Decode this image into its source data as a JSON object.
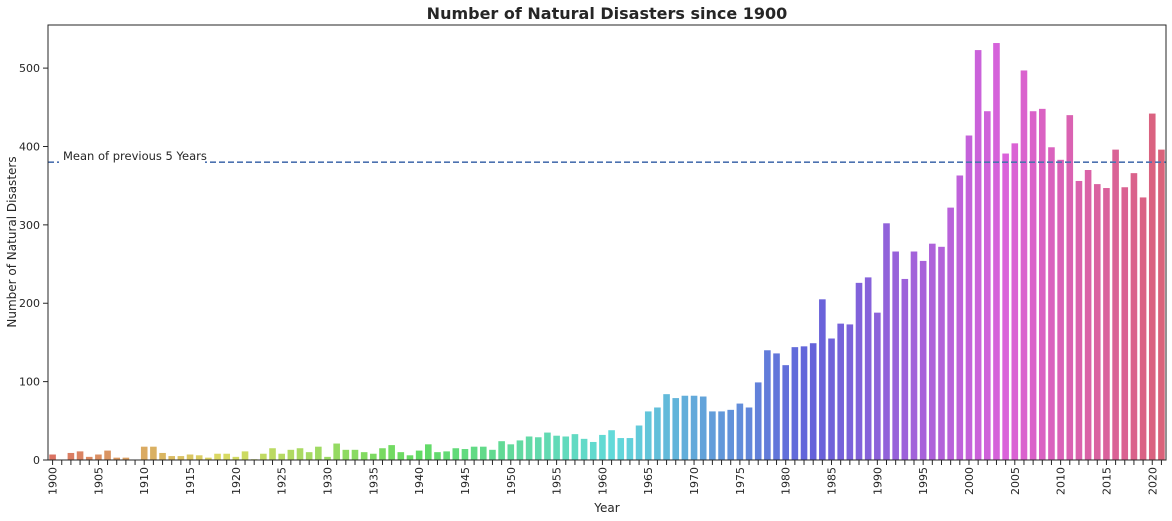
{
  "chart_data": {
    "type": "bar",
    "title": "Number of Natural Disasters since 1900",
    "xlabel": "Year",
    "ylabel": "Number of Natural Disasters",
    "ylim": [
      0,
      555
    ],
    "yticks": [
      0,
      100,
      200,
      300,
      400,
      500
    ],
    "grid": false,
    "x_start": 1900,
    "x_end": 2021,
    "xtick_step": 5,
    "x": [
      1900,
      1901,
      1902,
      1903,
      1904,
      1905,
      1906,
      1907,
      1908,
      1909,
      1910,
      1911,
      1912,
      1913,
      1914,
      1915,
      1916,
      1917,
      1918,
      1919,
      1920,
      1921,
      1922,
      1923,
      1924,
      1925,
      1926,
      1927,
      1928,
      1929,
      1930,
      1931,
      1932,
      1933,
      1934,
      1935,
      1936,
      1937,
      1938,
      1939,
      1940,
      1941,
      1942,
      1943,
      1944,
      1945,
      1946,
      1947,
      1948,
      1949,
      1950,
      1951,
      1952,
      1953,
      1954,
      1955,
      1956,
      1957,
      1958,
      1959,
      1960,
      1961,
      1962,
      1963,
      1964,
      1965,
      1966,
      1967,
      1968,
      1969,
      1970,
      1971,
      1972,
      1973,
      1974,
      1975,
      1976,
      1977,
      1978,
      1979,
      1980,
      1981,
      1982,
      1983,
      1984,
      1985,
      1986,
      1987,
      1988,
      1989,
      1990,
      1991,
      1992,
      1993,
      1994,
      1995,
      1996,
      1997,
      1998,
      1999,
      2000,
      2001,
      2002,
      2003,
      2004,
      2005,
      2006,
      2007,
      2008,
      2009,
      2010,
      2011,
      2012,
      2013,
      2014,
      2015,
      2016,
      2017,
      2018,
      2019,
      2020,
      2021
    ],
    "values": [
      7,
      0,
      9,
      11,
      4,
      7,
      12,
      3,
      3,
      0,
      17,
      17,
      9,
      5,
      5,
      7,
      6,
      3,
      8,
      8,
      4,
      11,
      1,
      8,
      15,
      8,
      13,
      15,
      10,
      17,
      4,
      21,
      13,
      13,
      10,
      8,
      15,
      19,
      10,
      6,
      12,
      20,
      10,
      11,
      15,
      14,
      17,
      17,
      13,
      24,
      20,
      25,
      30,
      29,
      35,
      31,
      30,
      33,
      27,
      23,
      32,
      38,
      28,
      28,
      44,
      62,
      67,
      84,
      79,
      82,
      82,
      81,
      62,
      62,
      64,
      72,
      67,
      99,
      140,
      136,
      121,
      144,
      145,
      149,
      205,
      155,
      174,
      173,
      226,
      233,
      188,
      302,
      266,
      231,
      266,
      254,
      276,
      272,
      322,
      363,
      414,
      523,
      445,
      532,
      391,
      404,
      497,
      445,
      448,
      399,
      383,
      440,
      356,
      370,
      352,
      347,
      396,
      348,
      366,
      335,
      442,
      396
    ],
    "mean_line": {
      "value": 380,
      "label": "Mean of previous 5 Years",
      "color": "#4c72b0"
    }
  }
}
